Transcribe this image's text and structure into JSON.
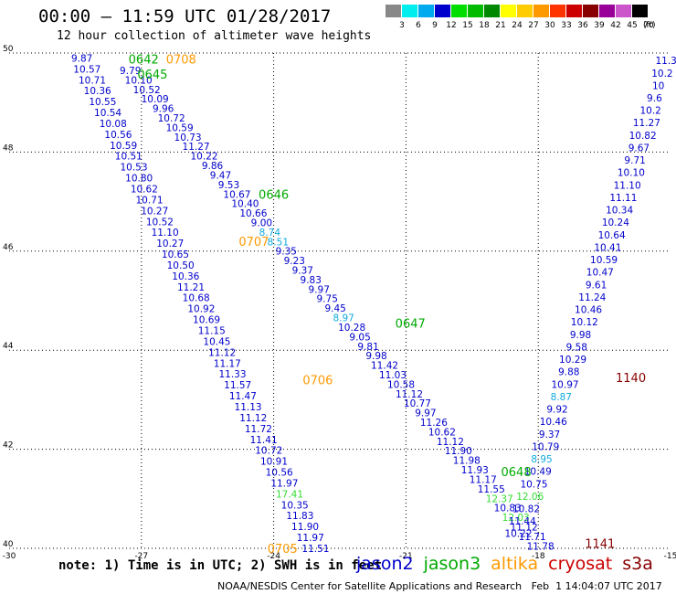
{
  "header": {
    "title": "00:00 – 11:59 UTC 01/28/2017",
    "subtitle": "12 hour collection of altimeter wave heights"
  },
  "colorbar": {
    "unit": "(ft)",
    "bins": [
      {
        "label": "3",
        "color": "#888888"
      },
      {
        "label": "6",
        "color": "#00eeee"
      },
      {
        "label": "9",
        "color": "#00aaee"
      },
      {
        "label": "12",
        "color": "#0000cc"
      },
      {
        "label": "15",
        "color": "#00dd00"
      },
      {
        "label": "18",
        "color": "#00bb00"
      },
      {
        "label": "21",
        "color": "#008800"
      },
      {
        "label": "24",
        "color": "#ffff00"
      },
      {
        "label": "27",
        "color": "#ffcc00"
      },
      {
        "label": "30",
        "color": "#ff9900"
      },
      {
        "label": "33",
        "color": "#ff3300"
      },
      {
        "label": "36",
        "color": "#cc0000"
      },
      {
        "label": "39",
        "color": "#880000"
      },
      {
        "label": "42",
        "color": "#990099"
      },
      {
        "label": "45",
        "color": "#cc55cc"
      },
      {
        "label": "70",
        "color": "#000000"
      }
    ]
  },
  "chart_data": {
    "type": "scatter",
    "xlim": [
      -30,
      -15
    ],
    "ylim": [
      40,
      50
    ],
    "x_ticks": [
      "-30",
      "-27",
      "-24",
      "-21",
      "-18",
      "-15"
    ],
    "y_ticks": [
      "40",
      "42",
      "44",
      "46",
      "48",
      "50"
    ],
    "tracks": [
      {
        "id": "t1",
        "color": "#0000cc",
        "values": [
          "9.87",
          "10.57",
          "10.71",
          "10.36",
          "10.55",
          "10.54",
          "10.08",
          "10.56",
          "10.59",
          "10.51",
          "10.53",
          "10.80",
          "10.62",
          "10.71",
          "10.27",
          "10.52",
          "11.10",
          "10.27",
          "10.65",
          "10.50",
          "10.36",
          "11.21",
          "10.68",
          "10.92",
          "10.69",
          "11.15",
          "10.45",
          "11.12",
          "11.17",
          "11.33",
          "11.57",
          "11.47",
          "11.13",
          "11.12",
          "11.72",
          "11.41",
          "10.72",
          "10.91",
          "10.56",
          "11.97",
          "17.41",
          "10.35",
          "11.83",
          "11.90",
          "11.97",
          "11.51"
        ]
      },
      {
        "id": "t2",
        "color": "#0000cc",
        "values": [
          "9.79",
          "10.10",
          "10.52",
          "10.09",
          "9.96",
          "10.72",
          "10.59",
          "10.73",
          "11.27",
          "10.22",
          "9.86",
          "9.47",
          "9.53",
          "10.67",
          "10.40",
          "10.66",
          "9.00",
          "8.74",
          "8.51",
          "9.35",
          "9.23",
          "9.37",
          "9.83",
          "9.97",
          "9.75",
          "9.45",
          "8.97",
          "10.28",
          "9.05",
          "9.81",
          "9.98",
          "11.42",
          "11.03",
          "10.58",
          "11.12",
          "10.77",
          "9.97",
          "11.26",
          "10.62",
          "11.12",
          "11.90",
          "11.98",
          "11.93",
          "11.17",
          "11.55",
          "12.37",
          "10.83",
          "12.03",
          "11.12",
          "11.71",
          "11.78"
        ]
      },
      {
        "id": "t3",
        "color": "#0000cc",
        "values": [
          "11.3",
          "10.2",
          "10",
          "9.6",
          "10.2",
          "11.27",
          "10.82",
          "9.67",
          "9.71",
          "10.10",
          "11.10",
          "11.11",
          "10.34",
          "10.24",
          "10.64",
          "10.41",
          "10.59",
          "10.47",
          "9.61",
          "11.24",
          "10.46",
          "10.12",
          "9.98",
          "9.58",
          "10.29",
          "9.88",
          "10.97",
          "8.87",
          "9.92",
          "10.46",
          "9.37",
          "10.79",
          "8.95",
          "10.49",
          "10.75",
          "12.06",
          "10.82",
          "11.44",
          "10.22"
        ]
      }
    ],
    "time_labels": [
      {
        "text": "0642",
        "color": "#00aa00"
      },
      {
        "text": "0645",
        "color": "#00aa00"
      },
      {
        "text": "0708",
        "color": "#ff9900"
      },
      {
        "text": "0646",
        "color": "#00aa00"
      },
      {
        "text": "0707",
        "color": "#ff9900"
      },
      {
        "text": "0647",
        "color": "#00aa00"
      },
      {
        "text": "0706",
        "color": "#ff9900"
      },
      {
        "text": "0648",
        "color": "#00aa00"
      },
      {
        "text": "0705",
        "color": "#ff9900"
      },
      {
        "text": "1140",
        "color": "#880000"
      },
      {
        "text": "1141",
        "color": "#880000"
      }
    ]
  },
  "note": "note: 1) Time is in UTC; 2) SWH is in feet",
  "legend": [
    {
      "label": "jason2",
      "color": "#0000cc"
    },
    {
      "label": "jason3",
      "color": "#00aa00"
    },
    {
      "label": "altika",
      "color": "#ff9900"
    },
    {
      "label": "cryosat",
      "color": "#cc0000"
    },
    {
      "label": "s3a",
      "color": "#880000"
    }
  ],
  "footer": "NOAA/NESDIS Center for Satellite Applications and Research   Feb  1 14:04:07 UTC 2017"
}
